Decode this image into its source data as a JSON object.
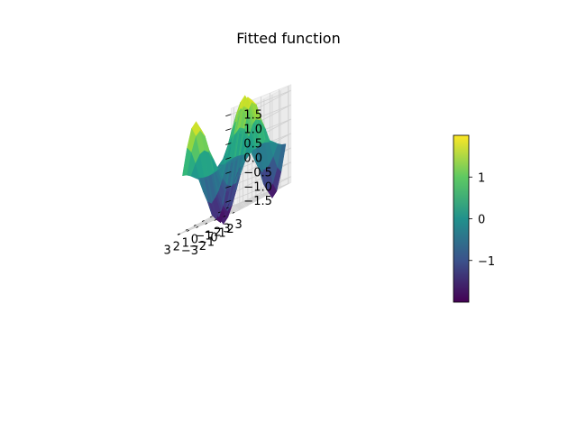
{
  "chart_data": {
    "type": "surface3d",
    "title": "Fitted function",
    "colormap": "viridis",
    "x": [
      -3.0,
      -2.5,
      -2.0,
      -1.5,
      -1.0,
      -0.5,
      0.0,
      0.5,
      1.0,
      1.5,
      2.0,
      2.5,
      3.0
    ],
    "y": [
      -3.0,
      -2.5,
      -2.0,
      -1.5,
      -1.0,
      -0.5,
      0.0,
      0.5,
      1.0,
      1.5,
      2.0,
      2.5,
      3.0
    ],
    "z_formula": "z = -sin(x) * cos(y) * 2",
    "x_ticks": [
      "−3",
      "−2",
      "−1",
      "0",
      "1",
      "2",
      "3"
    ],
    "y_ticks": [
      "−3",
      "−2",
      "−1",
      "0",
      "1",
      "2",
      "3"
    ],
    "z_ticks": [
      "−1.5",
      "−1.0",
      "−0.5",
      "0.0",
      "0.5",
      "1.0",
      "1.5"
    ],
    "xlim": [
      -3.3,
      3.3
    ],
    "ylim": [
      -3.3,
      3.3
    ],
    "zlim": [
      -1.7,
      1.7
    ],
    "grid": true,
    "colorbar": {
      "range": [
        -2.0,
        2.0
      ],
      "ticks": [
        "1",
        "0",
        "−1"
      ],
      "tick_values": [
        1,
        0,
        -1
      ]
    }
  }
}
